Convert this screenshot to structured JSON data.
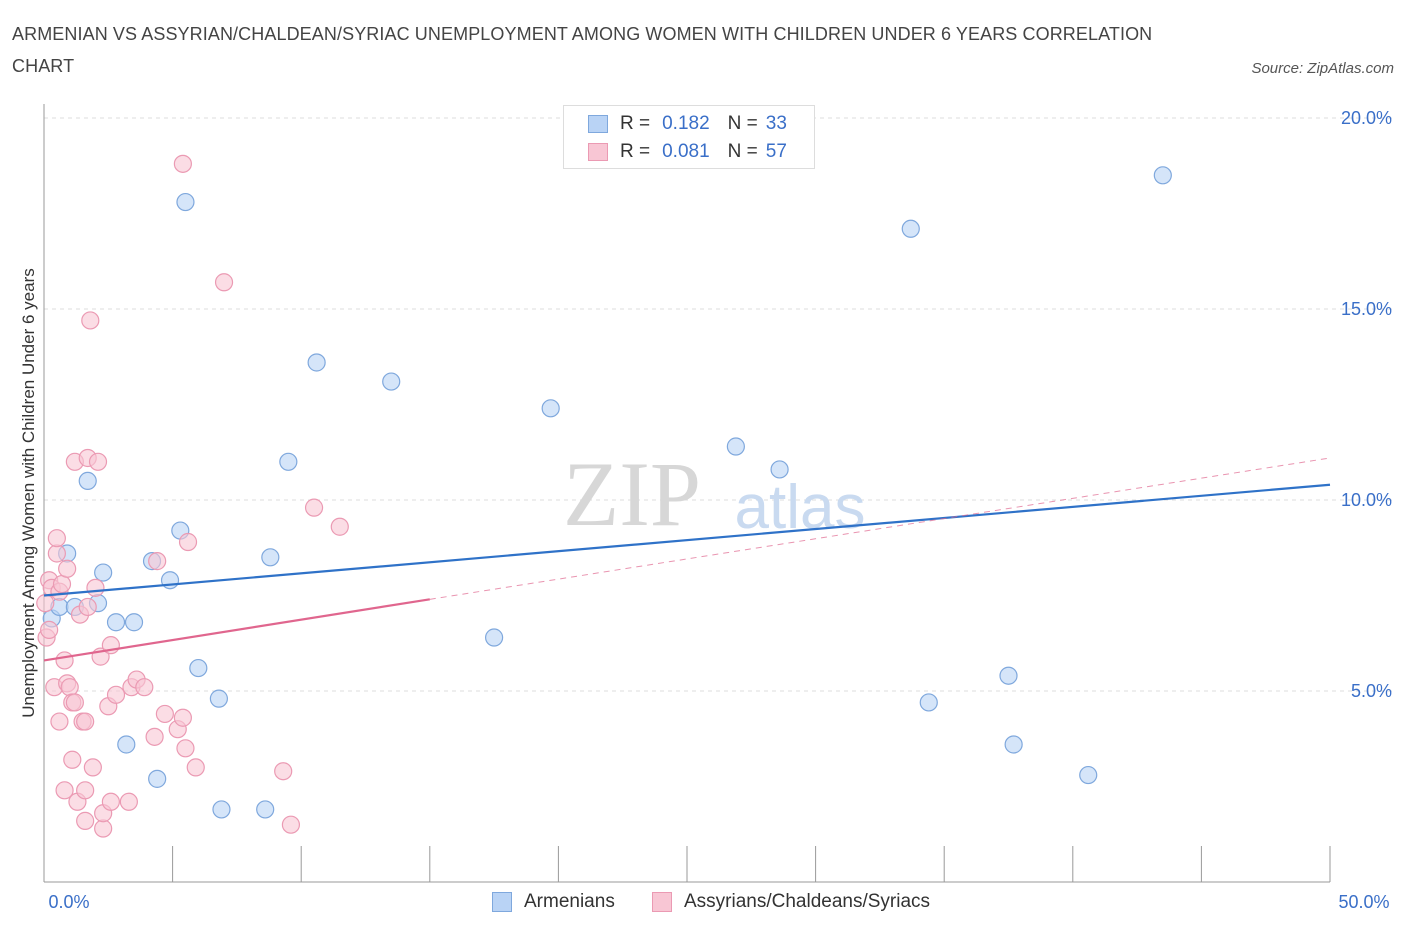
{
  "title": "ARMENIAN VS ASSYRIAN/CHALDEAN/SYRIAC UNEMPLOYMENT AMONG WOMEN WITH CHILDREN UNDER 6 YEARS CORRELATION CHART",
  "source": "Source: ZipAtlas.com",
  "watermark": {
    "zip": "ZIP",
    "atlas": "atlas"
  },
  "colors": {
    "blue_fill": "#b9d3f5",
    "blue_stroke": "#7fa8dd",
    "blue_line": "#2f72c8",
    "pink_fill": "#f8c6d4",
    "pink_stroke": "#eb9ab3",
    "pink_line": "#e0668e",
    "axis_label": "#3a6fc8",
    "grid": "#dddddd"
  },
  "legend": {
    "rows": [
      {
        "r_label": "R =",
        "r_value": "0.182",
        "n_label": "N =",
        "n_value": "33"
      },
      {
        "r_label": "R =",
        "r_value": "0.081",
        "n_label": "N =",
        "n_value": "57"
      }
    ]
  },
  "bottom_legend": {
    "series1": "Armenians",
    "series2": "Assyrians/Chaldeans/Syriacs"
  },
  "chart_data": {
    "type": "scatter",
    "xlabel": "",
    "ylabel": "Unemployment Among Women with Children Under 6 years",
    "xlim": [
      0,
      50
    ],
    "ylim": [
      0,
      20
    ],
    "x_tick_labels": {
      "min": "0.0%",
      "max": "50.0%"
    },
    "y_ticks": [
      {
        "value": 5,
        "label": "5.0%"
      },
      {
        "value": 10,
        "label": "10.0%"
      },
      {
        "value": 15,
        "label": "15.0%"
      },
      {
        "value": 20,
        "label": "20.0%"
      }
    ],
    "grid": true,
    "series": [
      {
        "name": "Armenians",
        "r": 0.182,
        "n": 33,
        "trend": {
          "x0": 0,
          "y0": 7.5,
          "x1": 50,
          "y1": 10.4,
          "dashed_to": null
        },
        "points": [
          [
            0.3,
            6.9
          ],
          [
            0.6,
            7.2
          ],
          [
            0.9,
            8.6
          ],
          [
            1.2,
            7.2
          ],
          [
            1.7,
            10.5
          ],
          [
            2.1,
            7.3
          ],
          [
            2.3,
            8.1
          ],
          [
            2.8,
            6.8
          ],
          [
            3.2,
            3.6
          ],
          [
            3.5,
            6.8
          ],
          [
            4.2,
            8.4
          ],
          [
            4.4,
            2.7
          ],
          [
            4.9,
            7.9
          ],
          [
            5.3,
            9.2
          ],
          [
            5.5,
            17.8
          ],
          [
            6.0,
            5.6
          ],
          [
            6.8,
            4.8
          ],
          [
            6.9,
            1.9
          ],
          [
            8.6,
            1.9
          ],
          [
            8.8,
            8.5
          ],
          [
            9.5,
            11.0
          ],
          [
            10.6,
            13.6
          ],
          [
            13.5,
            13.1
          ],
          [
            19.7,
            12.4
          ],
          [
            17.5,
            6.4
          ],
          [
            26.9,
            11.4
          ],
          [
            28.6,
            10.8
          ],
          [
            33.7,
            17.1
          ],
          [
            34.4,
            4.7
          ],
          [
            37.5,
            5.4
          ],
          [
            37.7,
            3.6
          ],
          [
            40.6,
            2.8
          ],
          [
            43.5,
            18.5
          ]
        ]
      },
      {
        "name": "Assyrians/Chaldeans/Syriacs",
        "r": 0.081,
        "n": 57,
        "trend": {
          "x0": 0,
          "y0": 5.8,
          "x1": 15,
          "y1": 7.4,
          "dashed_to": {
            "x": 50,
            "y": 11.1
          }
        },
        "points": [
          [
            0.1,
            6.4
          ],
          [
            0.2,
            6.6
          ],
          [
            0.2,
            7.9
          ],
          [
            0.3,
            7.7
          ],
          [
            0.4,
            5.1
          ],
          [
            0.5,
            8.6
          ],
          [
            0.5,
            9.0
          ],
          [
            0.6,
            7.6
          ],
          [
            0.6,
            4.2
          ],
          [
            0.7,
            7.8
          ],
          [
            0.8,
            5.8
          ],
          [
            0.8,
            2.4
          ],
          [
            0.9,
            5.2
          ],
          [
            0.9,
            8.2
          ],
          [
            1.0,
            5.1
          ],
          [
            1.1,
            3.2
          ],
          [
            1.1,
            4.7
          ],
          [
            1.2,
            4.7
          ],
          [
            1.2,
            11.0
          ],
          [
            1.3,
            2.1
          ],
          [
            1.4,
            7.0
          ],
          [
            1.5,
            4.2
          ],
          [
            1.6,
            4.2
          ],
          [
            1.6,
            2.4
          ],
          [
            1.6,
            1.6
          ],
          [
            1.7,
            7.2
          ],
          [
            1.7,
            11.1
          ],
          [
            1.8,
            14.7
          ],
          [
            1.9,
            3.0
          ],
          [
            2.0,
            7.7
          ],
          [
            2.1,
            11.0
          ],
          [
            2.2,
            5.9
          ],
          [
            2.3,
            1.4
          ],
          [
            2.3,
            1.8
          ],
          [
            2.5,
            4.6
          ],
          [
            2.6,
            6.2
          ],
          [
            2.6,
            2.1
          ],
          [
            2.8,
            4.9
          ],
          [
            3.3,
            2.1
          ],
          [
            3.4,
            5.1
          ],
          [
            3.6,
            5.3
          ],
          [
            3.9,
            5.1
          ],
          [
            4.3,
            3.8
          ],
          [
            4.4,
            8.4
          ],
          [
            4.7,
            4.4
          ],
          [
            5.2,
            4.0
          ],
          [
            5.4,
            4.3
          ],
          [
            5.5,
            3.5
          ],
          [
            5.6,
            8.9
          ],
          [
            5.9,
            3.0
          ],
          [
            5.4,
            18.8
          ],
          [
            7.0,
            15.7
          ],
          [
            9.3,
            2.9
          ],
          [
            9.6,
            1.5
          ],
          [
            10.5,
            9.8
          ],
          [
            11.5,
            9.3
          ],
          [
            0.05,
            7.3
          ]
        ]
      }
    ]
  }
}
